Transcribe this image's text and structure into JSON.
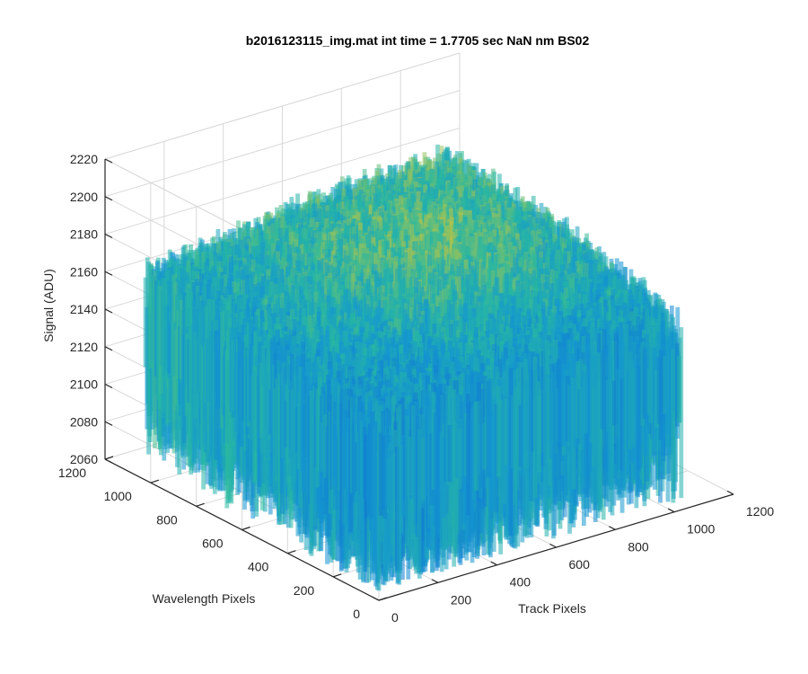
{
  "chart_data": {
    "type": "surface",
    "title": "b2016123115_img.mat int time = 1.7705 sec  NaN nm BS02",
    "xlabel": "Track Pixels",
    "ylabel": "Wavelength Pixels",
    "zlabel": "Signal (ADU)",
    "xlim": [
      0,
      1200
    ],
    "ylim": [
      0,
      1200
    ],
    "zlim": [
      2060,
      2220
    ],
    "xticks": [
      "0",
      "200",
      "400",
      "600",
      "800",
      "1000",
      "1200"
    ],
    "yticks": [
      "0",
      "200",
      "400",
      "600",
      "800",
      "1000",
      "1200"
    ],
    "zticks": [
      "2060",
      "2080",
      "2100",
      "2120",
      "2140",
      "2160",
      "2180",
      "2200",
      "2220"
    ],
    "grid": true,
    "colormap": "parula",
    "colors": {
      "low": "#0072bd",
      "mid": "#26bba6",
      "high": "#edb120",
      "grid": "#d9d9d9",
      "axis": "#262626"
    },
    "surface": {
      "x_range": [
        1,
        1024
      ],
      "y_range": [
        1,
        1024
      ],
      "mean_signal": 2140,
      "corner_levels": {
        "x0_y0": 2125,
        "xmax_y0": 2130,
        "x0_ymax": 2140,
        "xmax_ymax": 2155
      },
      "center_signal": 2165,
      "noise_range": [
        2085,
        2200
      ]
    }
  }
}
